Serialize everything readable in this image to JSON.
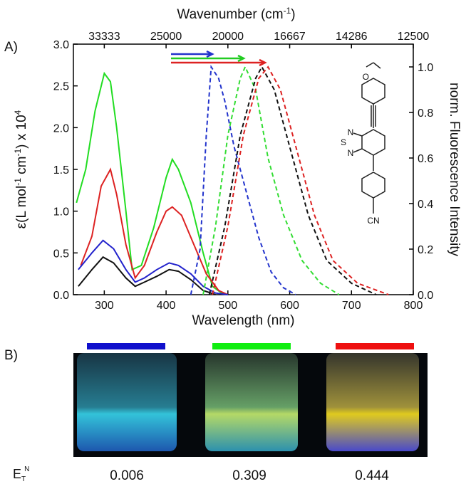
{
  "panel_labels": [
    "A)",
    "B)"
  ],
  "chart_data": {
    "type": "line",
    "x_label": "Wavelength (nm)",
    "x2_label_parts": [
      "Wavenumber (cm",
      "-1",
      ")"
    ],
    "y_label_parts": [
      "ε(L mol",
      "-1",
      " cm",
      "-1",
      ") x 10",
      "4"
    ],
    "y2_label": "norm. Fluorescence Intensity",
    "xlim": [
      250,
      800
    ],
    "xticks": [
      300,
      400,
      500,
      600,
      700,
      800
    ],
    "x2ticks": [
      33333,
      25000,
      20000,
      16667,
      14286,
      12500
    ],
    "ylim": [
      0,
      3.0
    ],
    "yticks": [
      {
        "value": 0,
        "label": "0.0"
      },
      0.5,
      {
        "value": 1,
        "label": "1.0"
      },
      1.5,
      {
        "value": 2,
        "label": "2.0"
      },
      2.5,
      {
        "value": 3,
        "label": "3.0"
      }
    ],
    "y2lim": [
      0,
      1.1
    ],
    "y2ticks": [
      {
        "value": 0,
        "label": "0.0"
      },
      0.2,
      0.4,
      0.6,
      0.8,
      {
        "value": 1,
        "label": "1.0"
      }
    ],
    "series": [
      {
        "color": "#22dd22",
        "style": "solid",
        "x": [
          255,
          270,
          285,
          300,
          310,
          320,
          335,
          345,
          360,
          380,
          400,
          410,
          420,
          440,
          460,
          475,
          490,
          500
        ],
        "values": [
          1.1,
          1.5,
          2.2,
          2.65,
          2.55,
          2.0,
          1.0,
          0.3,
          0.35,
          0.8,
          1.4,
          1.62,
          1.5,
          1.1,
          0.5,
          0.1,
          0.02,
          0
        ]
      },
      {
        "color": "#dd2222",
        "style": "solid",
        "x": [
          262,
          280,
          295,
          310,
          320,
          335,
          350,
          365,
          385,
          400,
          410,
          425,
          445,
          465,
          485,
          500
        ],
        "values": [
          0.35,
          0.7,
          1.3,
          1.5,
          1.2,
          0.6,
          0.2,
          0.35,
          0.75,
          1.0,
          1.05,
          0.95,
          0.6,
          0.25,
          0.05,
          0
        ]
      },
      {
        "color": "#2222cc",
        "style": "solid",
        "x": [
          258,
          280,
          298,
          315,
          335,
          350,
          365,
          385,
          405,
          420,
          440,
          460,
          480,
          500
        ],
        "values": [
          0.3,
          0.5,
          0.65,
          0.55,
          0.3,
          0.15,
          0.2,
          0.3,
          0.38,
          0.35,
          0.25,
          0.1,
          0.02,
          0
        ]
      },
      {
        "color": "#111111",
        "style": "solid",
        "x": [
          258,
          280,
          298,
          315,
          335,
          350,
          365,
          385,
          405,
          420,
          440,
          460,
          480
        ],
        "values": [
          0.1,
          0.3,
          0.45,
          0.38,
          0.2,
          0.1,
          0.15,
          0.22,
          0.3,
          0.28,
          0.18,
          0.05,
          0
        ]
      },
      {
        "color": "#2233cc",
        "style": "dashed",
        "axis": "y2",
        "x": [
          440,
          455,
          465,
          473,
          485,
          495,
          510,
          530,
          550,
          570,
          590,
          610
        ],
        "values": [
          0,
          0.2,
          0.7,
          1.0,
          0.95,
          0.85,
          0.65,
          0.45,
          0.25,
          0.1,
          0.03,
          0
        ]
      },
      {
        "color": "#33dd33",
        "style": "dashed",
        "axis": "y2",
        "x": [
          460,
          480,
          500,
          520,
          528,
          545,
          565,
          590,
          620,
          650,
          680
        ],
        "values": [
          0,
          0.3,
          0.7,
          0.95,
          1.0,
          0.9,
          0.6,
          0.35,
          0.15,
          0.05,
          0
        ]
      },
      {
        "color": "#111111",
        "style": "dashed",
        "axis": "y2",
        "x": [
          470,
          495,
          520,
          545,
          555,
          575,
          600,
          630,
          660,
          700,
          740
        ],
        "values": [
          0,
          0.3,
          0.7,
          0.95,
          1.0,
          0.9,
          0.65,
          0.35,
          0.15,
          0.05,
          0
        ]
      },
      {
        "color": "#dd2222",
        "style": "dashed",
        "axis": "y2",
        "x": [
          475,
          500,
          525,
          550,
          565,
          585,
          610,
          640,
          670,
          710,
          760
        ],
        "values": [
          0,
          0.3,
          0.7,
          0.95,
          1.0,
          0.9,
          0.65,
          0.35,
          0.15,
          0.05,
          0
        ]
      }
    ]
  },
  "structure_labels": {
    "o": "O",
    "n1": "N",
    "s": "S",
    "n2": "N",
    "cn": "CN"
  },
  "et_label": {
    "base": "E",
    "sub": "T",
    "sup": "N"
  },
  "et_values": [
    "0.006",
    "0.309",
    "0.444"
  ]
}
